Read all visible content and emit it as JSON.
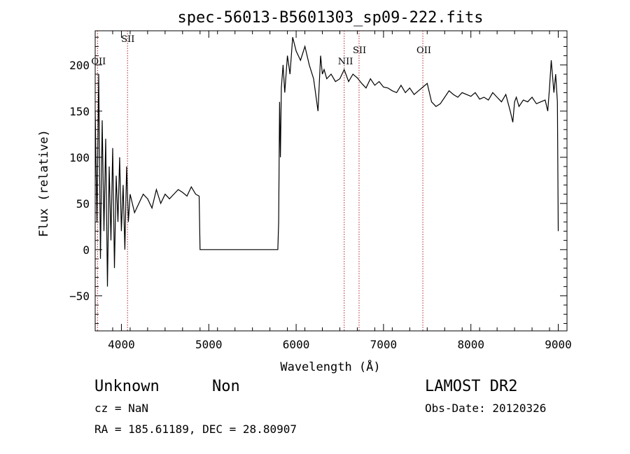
{
  "chart_data": {
    "type": "line",
    "title": "spec-56013-B5601303_sp09-222.fits",
    "xlabel": "Wavelength (Å)",
    "ylabel": "Flux (relative)",
    "xlim": [
      3700,
      9100
    ],
    "ylim": [
      -88,
      237
    ],
    "x_ticks": [
      4000,
      5000,
      6000,
      7000,
      8000,
      9000
    ],
    "y_ticks": [
      -50,
      0,
      50,
      100,
      150,
      200
    ],
    "grid": false,
    "legend": "none",
    "color": "#000000",
    "line_color": "#b22222",
    "lines": [
      {
        "label": "OII",
        "x": 3727
      },
      {
        "label": "SII",
        "x": 4070
      },
      {
        "label": "NII",
        "x": 6550
      },
      {
        "label": "SII",
        "x": 6720
      },
      {
        "label": "OII",
        "x": 7450
      }
    ],
    "series": [
      {
        "x": [
          3700,
          3720,
          3740,
          3760,
          3780,
          3800,
          3820,
          3840,
          3860,
          3880,
          3900,
          3920,
          3940,
          3960,
          3980,
          4000,
          4020,
          4040,
          4060,
          4080,
          4100,
          4150,
          4200,
          4250,
          4300,
          4350,
          4400,
          4450,
          4500,
          4550,
          4600,
          4650,
          4700,
          4750,
          4800,
          4850,
          4890,
          4900,
          4910,
          4920,
          5790,
          5800,
          5810,
          5820,
          5830,
          5850,
          5870,
          5900,
          5930,
          5960,
          6000,
          6050,
          6100,
          6150,
          6200,
          6250,
          6280,
          6300,
          6320,
          6350,
          6400,
          6450,
          6500,
          6550,
          6600,
          6650,
          6700,
          6750,
          6800,
          6850,
          6900,
          6950,
          7000,
          7050,
          7100,
          7150,
          7200,
          7250,
          7300,
          7350,
          7400,
          7450,
          7500,
          7550,
          7600,
          7650,
          7700,
          7750,
          7800,
          7850,
          7900,
          7950,
          8000,
          8050,
          8100,
          8150,
          8200,
          8250,
          8300,
          8350,
          8400,
          8450,
          8480,
          8500,
          8520,
          8550,
          8600,
          8650,
          8700,
          8750,
          8800,
          8850,
          8880,
          8900,
          8920,
          8950,
          8970,
          8990,
          9000
        ],
        "y": [
          150,
          30,
          190,
          -10,
          140,
          20,
          120,
          -40,
          90,
          10,
          110,
          -20,
          80,
          30,
          100,
          20,
          70,
          0,
          90,
          30,
          60,
          40,
          50,
          60,
          55,
          45,
          65,
          50,
          60,
          55,
          60,
          65,
          62,
          58,
          68,
          60,
          58,
          0,
          0,
          0,
          0,
          30,
          160,
          100,
          175,
          200,
          170,
          210,
          190,
          230,
          215,
          205,
          220,
          200,
          185,
          150,
          210,
          190,
          195,
          185,
          190,
          182,
          185,
          195,
          182,
          190,
          186,
          180,
          175,
          185,
          178,
          182,
          176,
          175,
          172,
          170,
          178,
          170,
          175,
          168,
          172,
          176,
          180,
          160,
          155,
          158,
          165,
          172,
          168,
          165,
          170,
          168,
          166,
          170,
          163,
          165,
          162,
          170,
          165,
          160,
          168,
          150,
          138,
          160,
          165,
          155,
          162,
          160,
          165,
          158,
          160,
          162,
          150,
          175,
          205,
          170,
          190,
          160,
          20
        ]
      }
    ]
  },
  "footer": {
    "class_label": "Unknown",
    "subclass_label": "Non",
    "cz": "cz = NaN",
    "coords": "RA = 185.61189, DEC =  28.80907",
    "survey": "LAMOST DR2",
    "obs_date": "Obs-Date: 20120326"
  }
}
